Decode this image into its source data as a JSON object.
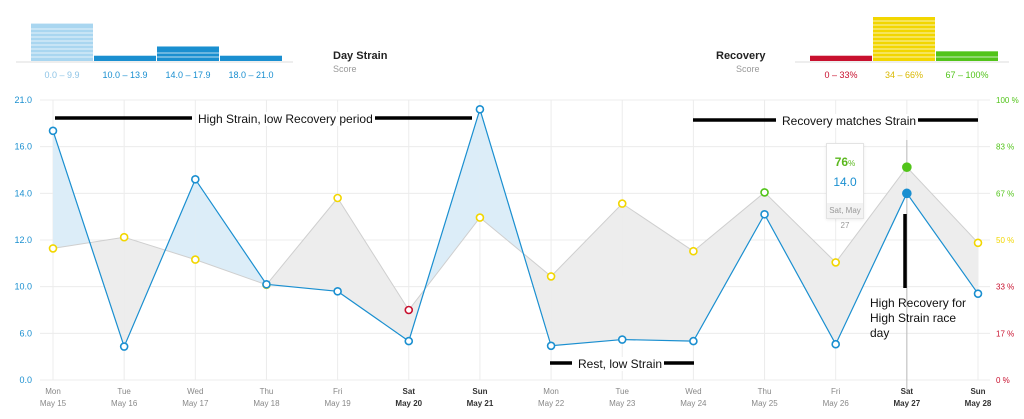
{
  "legends": {
    "strain": {
      "title": "Day Strain",
      "subtitle": "Score",
      "bins": [
        {
          "label": "0.0 – 9.9",
          "color": "#a9d6f0",
          "level": 0.85
        },
        {
          "label": "10.0 – 13.9",
          "color": "#1a8fd0",
          "level": 0.12
        },
        {
          "label": "14.0 – 17.9",
          "color": "#1a8fd0",
          "level": 0.33
        },
        {
          "label": "18.0 – 21.0",
          "color": "#1a8fd0",
          "level": 0.12
        }
      ]
    },
    "recovery": {
      "title": "Recovery",
      "subtitle": "Score",
      "bins": [
        {
          "label": "0 – 33%",
          "color": "#c8102e",
          "level": 0.12
        },
        {
          "label": "34 – 66%",
          "color": "#f2d600",
          "level": 1.0
        },
        {
          "label": "67 – 100%",
          "color": "#52c41a",
          "level": 0.22
        }
      ]
    }
  },
  "colors": {
    "strain": "#1a8fd0",
    "recovery_low": "#c8102e",
    "recovery_mid": "#f2d600",
    "recovery_high": "#52c41a",
    "grid": "#ececec",
    "band_strain_above": "#dcedf8",
    "band_recovery_above": "#ededed"
  },
  "annotations": {
    "high_strain": "High Strain, low Recovery period",
    "recovery_matches": "Recovery matches Strain",
    "rest": "Rest, low Strain",
    "high_recovery": "High Recovery for High Strain race day"
  },
  "tooltip": {
    "recovery_value": "76",
    "recovery_unit": "%",
    "strain_value": "14.0",
    "date": "Sat, May 27"
  },
  "chart_data": {
    "type": "line",
    "x": [
      {
        "day": "Mon",
        "date": "May 15",
        "bold": false
      },
      {
        "day": "Tue",
        "date": "May 16",
        "bold": false
      },
      {
        "day": "Wed",
        "date": "May 17",
        "bold": false
      },
      {
        "day": "Thu",
        "date": "May 18",
        "bold": false
      },
      {
        "day": "Fri",
        "date": "May 19",
        "bold": false
      },
      {
        "day": "Sat",
        "date": "May 20",
        "bold": true
      },
      {
        "day": "Sun",
        "date": "May 21",
        "bold": true
      },
      {
        "day": "Mon",
        "date": "May 22",
        "bold": false
      },
      {
        "day": "Tue",
        "date": "May 23",
        "bold": false
      },
      {
        "day": "Wed",
        "date": "May 24",
        "bold": false
      },
      {
        "day": "Thu",
        "date": "May 25",
        "bold": false
      },
      {
        "day": "Fri",
        "date": "May 26",
        "bold": false
      },
      {
        "day": "Sat",
        "date": "May 27",
        "bold": true
      },
      {
        "day": "Sun",
        "date": "May 28",
        "bold": true
      }
    ],
    "y_left_ticks": [
      "0.0",
      "6.0",
      "10.0",
      "12.0",
      "14.0",
      "16.0",
      "21.0"
    ],
    "y_right_ticks": [
      "0 %",
      "17 %",
      "33 %",
      "50 %",
      "67 %",
      "83 %",
      "100 %"
    ],
    "ylim_left": [
      0,
      21
    ],
    "ylim_right": [
      0,
      100
    ],
    "highlight_index": 12,
    "series": [
      {
        "key": "strain",
        "values": [
          17.7,
          4.3,
          14.6,
          10.1,
          9.6,
          5.0,
          20.0,
          4.4,
          5.2,
          5.0,
          13.1,
          4.6,
          14.0,
          9.4
        ]
      },
      {
        "key": "recovery",
        "values": [
          47,
          51,
          43,
          34,
          65,
          25,
          58,
          37,
          63,
          46,
          67,
          42,
          76,
          49
        ]
      }
    ]
  }
}
